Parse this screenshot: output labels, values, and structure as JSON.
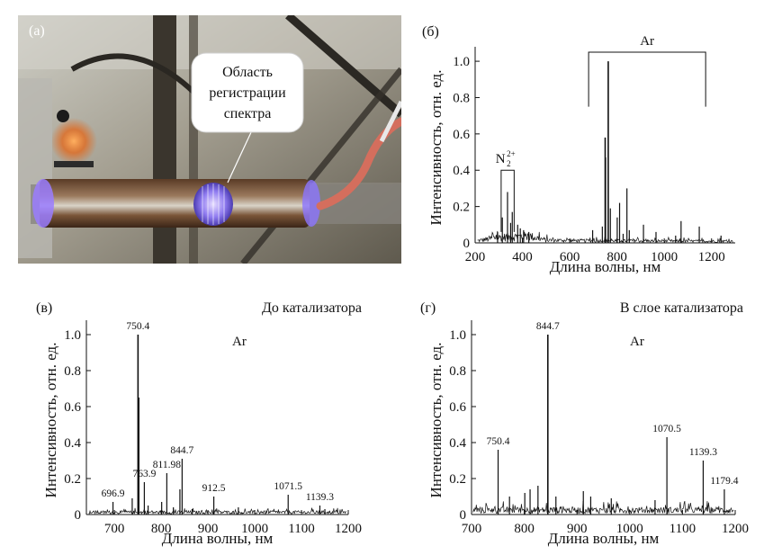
{
  "photo": {
    "label": "(а)",
    "callout_line1": "Область",
    "callout_line2": "регистрации",
    "callout_line3": "спектра"
  },
  "chart_data": [
    {
      "panel": "(б)",
      "type": "line",
      "title": "",
      "xlabel": "Длина волны, нм",
      "ylabel": "Интенсивность, отн. ед.",
      "xlim": [
        200,
        1300
      ],
      "ylim": [
        0,
        1.05
      ],
      "xticks": [
        200,
        400,
        600,
        800,
        1000,
        1200
      ],
      "yticks": [
        0,
        0.2,
        0.4,
        0.6,
        0.8,
        1.0
      ],
      "ytick_labels": [
        "0",
        "0.2",
        "0.4",
        "0.6",
        "0.8",
        "1.0"
      ],
      "noise": {
        "from": 210,
        "to": 1290,
        "levels": [
          [
            210,
            0.02
          ],
          [
            300,
            0.05
          ],
          [
            430,
            0.06
          ],
          [
            500,
            0.025
          ],
          [
            650,
            0.02
          ],
          [
            1290,
            0.015
          ]
        ]
      },
      "peaks": [
        {
          "x": 295,
          "y": 0.06
        },
        {
          "x": 315,
          "y": 0.14
        },
        {
          "x": 337,
          "y": 0.28
        },
        {
          "x": 350,
          "y": 0.11
        },
        {
          "x": 357,
          "y": 0.17
        },
        {
          "x": 380,
          "y": 0.1
        },
        {
          "x": 391,
          "y": 0.08
        },
        {
          "x": 405,
          "y": 0.07
        },
        {
          "x": 427,
          "y": 0.06
        },
        {
          "x": 697,
          "y": 0.07
        },
        {
          "x": 738,
          "y": 0.09
        },
        {
          "x": 750,
          "y": 0.58
        },
        {
          "x": 752,
          "y": 0.47
        },
        {
          "x": 763,
          "y": 1.0
        },
        {
          "x": 772,
          "y": 0.19
        },
        {
          "x": 801,
          "y": 0.14
        },
        {
          "x": 811,
          "y": 0.22
        },
        {
          "x": 826,
          "y": 0.05
        },
        {
          "x": 842,
          "y": 0.3
        },
        {
          "x": 852,
          "y": 0.07
        },
        {
          "x": 912,
          "y": 0.1
        },
        {
          "x": 965,
          "y": 0.06
        },
        {
          "x": 1048,
          "y": 0.04
        },
        {
          "x": 1071,
          "y": 0.12
        },
        {
          "x": 1148,
          "y": 0.09
        },
        {
          "x": 1240,
          "y": 0.04
        }
      ],
      "annotations": [
        {
          "text": "Ar",
          "kind": "bracket",
          "x_from": 680,
          "x_to": 1175,
          "y": 1.05,
          "y_drop": 0.3
        },
        {
          "text": "N",
          "sup": "2+",
          "sub": "2",
          "kind": "bracket",
          "x_from": 310,
          "x_to": 365,
          "y": 0.4,
          "y_drop": 0.34
        }
      ]
    },
    {
      "panel": "(в)",
      "type": "line",
      "title": "До катализатора",
      "xlabel": "Длина волны, нм",
      "ylabel": "Интенсивность, отн. ед.",
      "xlim": [
        640,
        1200
      ],
      "ylim": [
        0,
        1.05
      ],
      "xticks": [
        700,
        800,
        900,
        1000,
        1100,
        1200
      ],
      "yticks": [
        0,
        0.2,
        0.4,
        0.6,
        0.8,
        1.0
      ],
      "ytick_labels": [
        "0",
        "0.2",
        "0.4",
        "0.6",
        "0.8",
        "1.0"
      ],
      "series_label": "Ar",
      "noise": {
        "from": 645,
        "to": 1195,
        "levels": [
          [
            645,
            0.02
          ],
          [
            1195,
            0.02
          ]
        ]
      },
      "peaks": [
        {
          "x": 696.9,
          "y": 0.07,
          "label": "696.9"
        },
        {
          "x": 738,
          "y": 0.09
        },
        {
          "x": 750.4,
          "y": 1.0,
          "label": "750.4"
        },
        {
          "x": 752,
          "y": 0.65
        },
        {
          "x": 763.9,
          "y": 0.18,
          "label": "763.9"
        },
        {
          "x": 772,
          "y": 0.05
        },
        {
          "x": 801,
          "y": 0.07
        },
        {
          "x": 811.98,
          "y": 0.23,
          "label": "811.98"
        },
        {
          "x": 826,
          "y": 0.04
        },
        {
          "x": 840,
          "y": 0.14
        },
        {
          "x": 844.7,
          "y": 0.31,
          "label": "844.7"
        },
        {
          "x": 866,
          "y": 0.03
        },
        {
          "x": 912.5,
          "y": 0.1,
          "label": "912.5"
        },
        {
          "x": 965,
          "y": 0.04
        },
        {
          "x": 1071.5,
          "y": 0.11,
          "label": "1071.5"
        },
        {
          "x": 1139.3,
          "y": 0.05,
          "label": "1139.3"
        },
        {
          "x": 1150,
          "y": 0.03
        }
      ]
    },
    {
      "panel": "(г)",
      "type": "line",
      "title": "В слое катализатора",
      "xlabel": "Длина волны, нм",
      "ylabel": "Интенсивность, отн. ед.",
      "xlim": [
        700,
        1200
      ],
      "ylim": [
        0,
        1.05
      ],
      "xticks": [
        700,
        800,
        900,
        1000,
        1100,
        1200
      ],
      "yticks": [
        0,
        0.2,
        0.4,
        0.6,
        0.8,
        1.0
      ],
      "ytick_labels": [
        "0",
        "0.2",
        "0.4",
        "0.6",
        "0.8",
        "1.0"
      ],
      "series_label": "Ar",
      "noise": {
        "from": 703,
        "to": 1197,
        "levels": [
          [
            703,
            0.04
          ],
          [
            1197,
            0.04
          ]
        ]
      },
      "peaks": [
        {
          "x": 750.4,
          "y": 0.36,
          "label": "750.4"
        },
        {
          "x": 772,
          "y": 0.1
        },
        {
          "x": 801,
          "y": 0.12
        },
        {
          "x": 811,
          "y": 0.14
        },
        {
          "x": 826,
          "y": 0.16
        },
        {
          "x": 844.7,
          "y": 1.0,
          "label": "844.7"
        },
        {
          "x": 860,
          "y": 0.1
        },
        {
          "x": 912,
          "y": 0.13
        },
        {
          "x": 926,
          "y": 0.1
        },
        {
          "x": 965,
          "y": 0.09
        },
        {
          "x": 1048,
          "y": 0.08
        },
        {
          "x": 1070.5,
          "y": 0.43,
          "label": "1070.5"
        },
        {
          "x": 1139.3,
          "y": 0.3,
          "label": "1139.3"
        },
        {
          "x": 1179.4,
          "y": 0.14,
          "label": "1179.4"
        }
      ]
    }
  ]
}
